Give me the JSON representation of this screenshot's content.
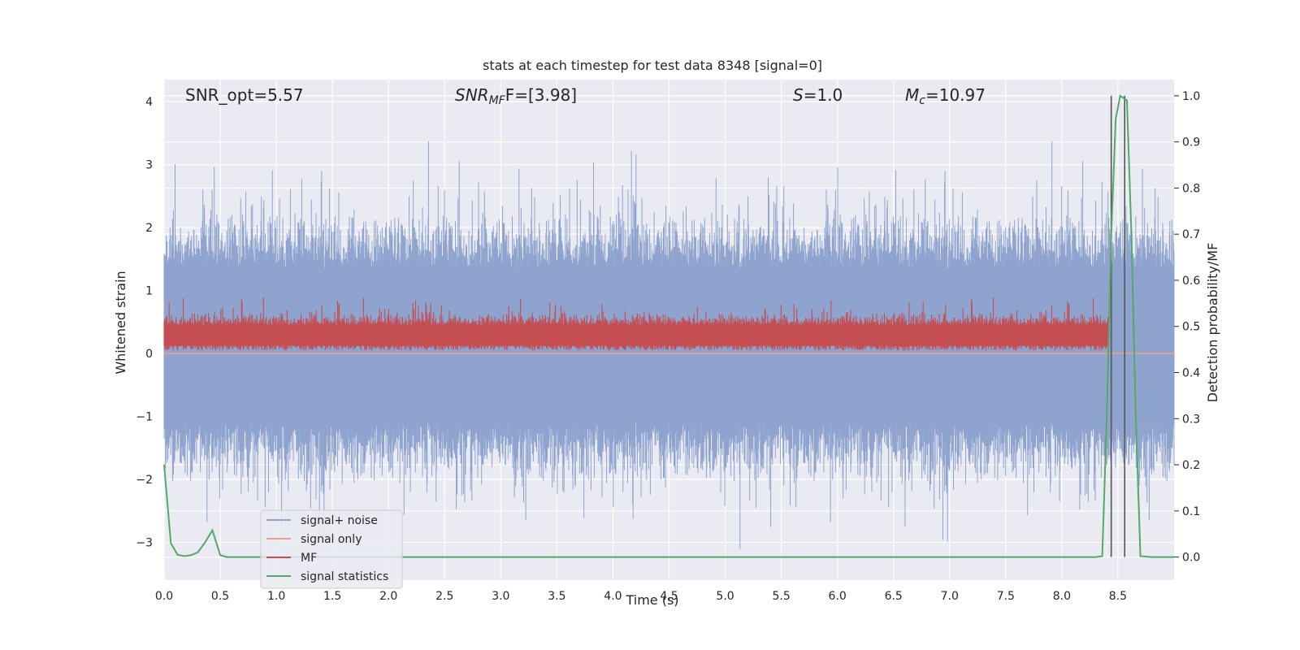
{
  "chart_data": {
    "type": "line",
    "title": "stats at each timestep for test data 8348 [signal=0]",
    "xlabel": "Time (s)",
    "ylabel_left": "Whitened strain",
    "ylabel_right": "Detection probability/MF",
    "xlim": [
      0.0,
      9.0
    ],
    "ylim_left": [
      -3.6,
      4.35
    ],
    "ylim_right": [
      -0.05,
      1.035
    ],
    "xticks": [
      "0.0",
      "0.5",
      "1.0",
      "1.5",
      "2.0",
      "2.5",
      "3.0",
      "3.5",
      "4.0",
      "4.5",
      "5.0",
      "5.5",
      "6.0",
      "6.5",
      "7.0",
      "7.5",
      "8.0",
      "8.5"
    ],
    "xtick_values": [
      0.0,
      0.5,
      1.0,
      1.5,
      2.0,
      2.5,
      3.0,
      3.5,
      4.0,
      4.5,
      5.0,
      5.5,
      6.0,
      6.5,
      7.0,
      7.5,
      8.0,
      8.5
    ],
    "yticks_left": [
      "−3",
      "−2",
      "−1",
      "0",
      "1",
      "2",
      "3",
      "4"
    ],
    "ytick_values_left": [
      -3,
      -2,
      -1,
      0,
      1,
      2,
      3,
      4
    ],
    "yticks_right": [
      "0.0",
      "0.1",
      "0.2",
      "0.3",
      "0.4",
      "0.5",
      "0.6",
      "0.7",
      "0.8",
      "0.9",
      "1.0"
    ],
    "ytick_values_right": [
      0.0,
      0.1,
      0.2,
      0.3,
      0.4,
      0.5,
      0.6,
      0.7,
      0.8,
      0.9,
      1.0
    ],
    "annotations": {
      "snr_opt": "SNR_opt=5.57",
      "snr_mf_main": "SNR",
      "snr_mf_sub": "MF",
      "snr_mf_rest": "F=[3.98]",
      "s_main": "S",
      "s_rest": "=1.0",
      "mc_main": "M",
      "mc_sub": "c",
      "mc_rest": "=10.97"
    },
    "legend": {
      "position": "lower-left",
      "entries": [
        "signal+ noise",
        "signal only",
        "MF",
        "signal statistics"
      ]
    },
    "series": [
      {
        "name": "signal+ noise",
        "axis": "left",
        "kind": "noise",
        "amplitude_range": [
          -3.3,
          3.6
        ],
        "color": "#8ea4cf"
      },
      {
        "name": "signal only",
        "axis": "left",
        "kind": "flat",
        "value": 0.0,
        "color": "#e8a384"
      },
      {
        "name": "MF",
        "axis": "left",
        "kind": "noise",
        "amplitude_range": [
          0.0,
          1.0
        ],
        "color": "#c44e52"
      },
      {
        "name": "signal statistics",
        "axis": "right",
        "kind": "line",
        "color": "#55a868",
        "x": [
          0.0,
          0.06,
          0.12,
          0.18,
          0.24,
          0.3,
          0.36,
          0.43,
          0.5,
          0.56,
          0.62,
          1.0,
          2.0,
          3.0,
          4.0,
          5.0,
          6.0,
          7.0,
          8.0,
          8.3,
          8.36,
          8.4,
          8.44,
          8.48,
          8.52,
          8.58,
          8.62,
          8.66,
          8.7,
          8.8,
          9.0
        ],
        "y": [
          0.2,
          0.03,
          0.005,
          0.002,
          0.004,
          0.01,
          0.03,
          0.058,
          0.004,
          0.0,
          0.0,
          0.0,
          0.0,
          0.0,
          0.0,
          0.0,
          0.0,
          0.0,
          0.0,
          0.0,
          0.002,
          0.3,
          0.7,
          0.95,
          1.0,
          0.99,
          0.7,
          0.3,
          0.002,
          0.0,
          0.0
        ]
      }
    ],
    "vertical_markers": [
      {
        "x": 8.44,
        "color": "#555555"
      },
      {
        "x": 8.56,
        "color": "#555555"
      }
    ]
  }
}
